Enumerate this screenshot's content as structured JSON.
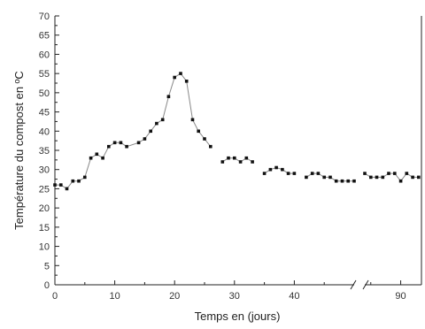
{
  "chart_data": {
    "type": "line",
    "title": "",
    "xlabel": "Temps en (jours)",
    "ylabel": "Température du compost en ºC",
    "ylim": [
      0,
      70
    ],
    "yticks": [
      0,
      5,
      10,
      15,
      20,
      25,
      30,
      35,
      40,
      45,
      50,
      55,
      60,
      65,
      70
    ],
    "xlim_segments": [
      [
        0,
        50
      ],
      [
        84,
        93
      ]
    ],
    "axis_break_after": 50,
    "xticks": [
      0,
      10,
      20,
      30,
      40,
      90
    ],
    "grid": false,
    "line_color": "#888888",
    "marker_color": "#111111",
    "series": [
      {
        "segments": [
          {
            "connected": true,
            "points": [
              [
                0,
                26
              ],
              [
                1,
                26
              ],
              [
                2,
                25
              ],
              [
                3,
                27
              ],
              [
                4,
                27
              ],
              [
                5,
                28
              ],
              [
                6,
                33
              ],
              [
                7,
                34
              ],
              [
                8,
                33
              ],
              [
                9,
                36
              ],
              [
                10,
                37
              ],
              [
                11,
                37
              ],
              [
                12,
                36
              ],
              [
                14,
                37
              ],
              [
                15,
                38
              ],
              [
                16,
                40
              ],
              [
                17,
                42
              ],
              [
                18,
                43
              ],
              [
                19,
                49
              ],
              [
                20,
                54
              ],
              [
                21,
                55
              ],
              [
                22,
                53
              ],
              [
                23,
                43
              ],
              [
                24,
                40
              ],
              [
                25,
                38
              ],
              [
                26,
                36
              ]
            ]
          },
          {
            "connected": true,
            "points": [
              [
                28,
                32
              ],
              [
                29,
                33
              ],
              [
                30,
                33
              ],
              [
                31,
                32
              ],
              [
                32,
                33
              ],
              [
                33,
                32
              ]
            ]
          },
          {
            "connected": true,
            "points": [
              [
                35,
                29
              ],
              [
                36,
                30
              ],
              [
                37,
                30.5
              ],
              [
                38,
                30
              ],
              [
                39,
                29
              ],
              [
                40,
                29
              ]
            ]
          },
          {
            "connected": true,
            "points": [
              [
                42,
                28
              ],
              [
                43,
                29
              ],
              [
                44,
                29
              ],
              [
                45,
                28
              ],
              [
                46,
                28
              ],
              [
                47,
                27
              ],
              [
                48,
                27
              ],
              [
                49,
                27
              ],
              [
                50,
                27
              ]
            ]
          },
          {
            "connected": true,
            "points": [
              [
                84,
                29
              ],
              [
                85,
                28
              ],
              [
                86,
                28
              ],
              [
                87,
                28
              ],
              [
                88,
                29
              ],
              [
                89,
                29
              ],
              [
                90,
                27
              ],
              [
                91,
                29
              ],
              [
                92,
                28
              ],
              [
                93,
                28
              ]
            ]
          }
        ]
      }
    ]
  }
}
